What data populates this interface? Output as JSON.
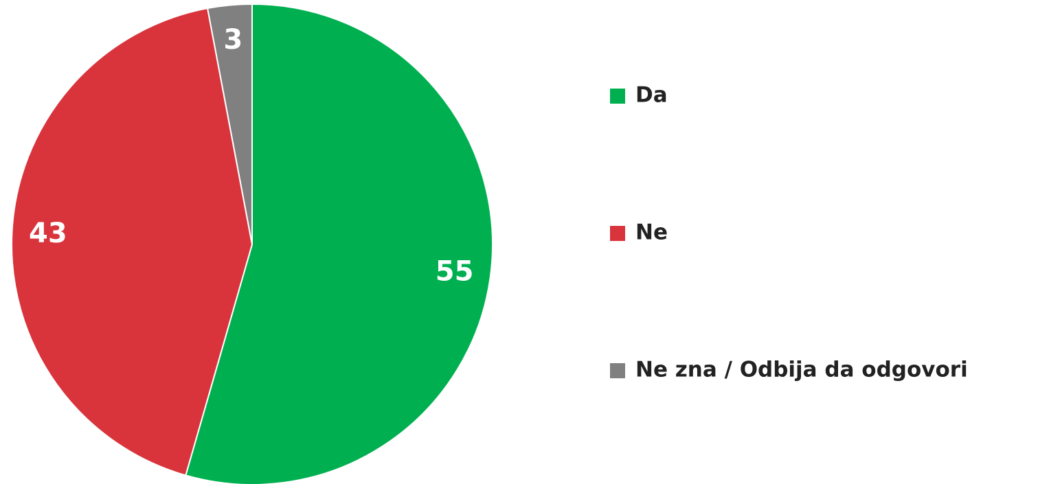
{
  "chart_data": {
    "type": "pie",
    "categories": [
      "Da",
      "Ne",
      "Ne zna / Odbija da odgovori"
    ],
    "values": [
      55,
      43,
      3
    ],
    "colors": [
      "#00b050",
      "#d9343c",
      "#808080"
    ],
    "legend": "right"
  }
}
